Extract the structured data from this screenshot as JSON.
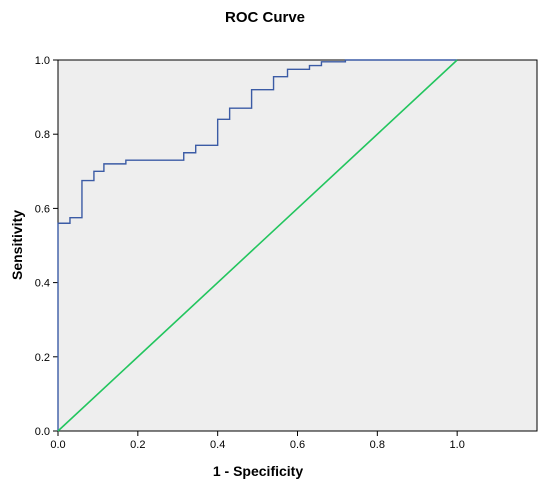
{
  "chart_data": {
    "type": "line",
    "title": "ROC Curve",
    "xlabel": "1 - Specificity",
    "ylabel": "Sensitivity",
    "xlim": [
      0,
      1.2
    ],
    "ylim": [
      0,
      1.0
    ],
    "x_ticks": [
      "0.0",
      "0.2",
      "0.4",
      "0.6",
      "0.8",
      "1.0"
    ],
    "y_ticks": [
      "0.0",
      "0.2",
      "0.4",
      "0.6",
      "0.8",
      "1.0"
    ],
    "grid": false,
    "plot_background": "#eeeeee",
    "series": [
      {
        "color": "#3b5ba5",
        "step": true,
        "x": [
          0.0,
          0.0,
          0.03,
          0.03,
          0.06,
          0.06,
          0.09,
          0.09,
          0.115,
          0.115,
          0.17,
          0.17,
          0.315,
          0.315,
          0.345,
          0.345,
          0.4,
          0.4,
          0.43,
          0.43,
          0.485,
          0.485,
          0.54,
          0.54,
          0.575,
          0.575,
          0.63,
          0.63,
          0.66,
          0.66,
          0.72,
          0.72,
          1.0
        ],
        "y": [
          0.0,
          0.56,
          0.56,
          0.575,
          0.575,
          0.675,
          0.675,
          0.7,
          0.7,
          0.72,
          0.72,
          0.73,
          0.73,
          0.75,
          0.75,
          0.77,
          0.77,
          0.84,
          0.84,
          0.87,
          0.87,
          0.92,
          0.92,
          0.955,
          0.955,
          0.975,
          0.975,
          0.985,
          0.985,
          0.995,
          0.995,
          1.0,
          1.0
        ]
      },
      {
        "color": "#22c55e",
        "step": false,
        "x": [
          0.0,
          1.0
        ],
        "y": [
          0.0,
          1.0
        ]
      }
    ]
  }
}
